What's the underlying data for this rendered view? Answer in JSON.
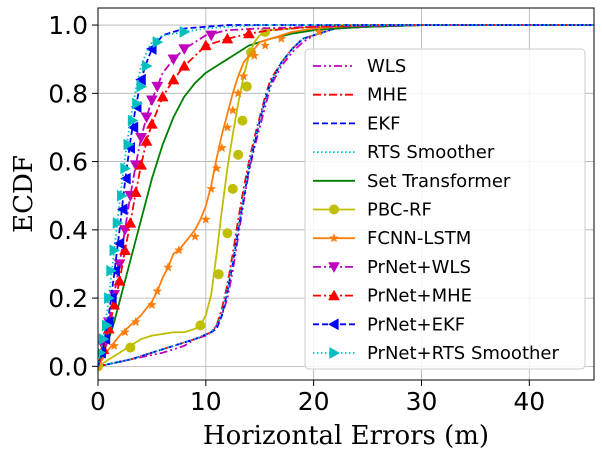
{
  "chart_data": {
    "type": "line",
    "xlabel": "Horizontal Errors (m)",
    "ylabel": "ECDF",
    "xlim": [
      0,
      46
    ],
    "ylim": [
      -0.04,
      1.05
    ],
    "xticks": [
      "0",
      "10",
      "20",
      "30",
      "40"
    ],
    "yticks": [
      "0.0",
      "0.2",
      "0.4",
      "0.6",
      "0.8",
      "1.0"
    ],
    "grid": true,
    "legend_position": "right",
    "series": [
      {
        "name": "WLS",
        "color": "#bf00bf",
        "dash": "dashdotdot",
        "marker": "none",
        "x": [
          0,
          3,
          6,
          8,
          9,
          10,
          10.5,
          11,
          11.5,
          12,
          12.5,
          13,
          13.5,
          14,
          14.5,
          15,
          15.5,
          16,
          17,
          18,
          19,
          20,
          22,
          25,
          30,
          40,
          46
        ],
        "y": [
          0,
          0.02,
          0.04,
          0.06,
          0.08,
          0.09,
          0.1,
          0.12,
          0.15,
          0.2,
          0.28,
          0.38,
          0.48,
          0.57,
          0.64,
          0.7,
          0.76,
          0.82,
          0.88,
          0.92,
          0.95,
          0.97,
          0.99,
          0.995,
          1,
          1,
          1
        ]
      },
      {
        "name": "MHE",
        "color": "#ff0000",
        "dash": "dashdot",
        "marker": "none",
        "x": [
          0,
          3,
          6,
          9,
          10.5,
          11,
          11.5,
          12,
          12.5,
          13,
          13.5,
          14,
          14.5,
          15,
          15.5,
          16,
          17,
          18,
          19,
          20,
          22,
          25,
          30,
          40,
          46
        ],
        "y": [
          0,
          0.02,
          0.05,
          0.08,
          0.1,
          0.12,
          0.17,
          0.24,
          0.33,
          0.43,
          0.52,
          0.6,
          0.67,
          0.73,
          0.79,
          0.84,
          0.89,
          0.93,
          0.96,
          0.97,
          0.99,
          0.995,
          1,
          1,
          1
        ]
      },
      {
        "name": "EKF",
        "color": "#0000ff",
        "dash": "dashed",
        "marker": "none",
        "x": [
          0,
          3,
          6,
          9,
          10.5,
          11,
          11.5,
          12,
          12.5,
          13,
          13.5,
          14,
          14.5,
          15,
          15.5,
          16,
          17,
          18,
          19,
          20,
          22,
          25,
          30,
          40,
          46
        ],
        "y": [
          0,
          0.02,
          0.05,
          0.08,
          0.1,
          0.11,
          0.15,
          0.22,
          0.3,
          0.4,
          0.49,
          0.58,
          0.65,
          0.72,
          0.78,
          0.83,
          0.89,
          0.93,
          0.96,
          0.97,
          0.99,
          0.995,
          1,
          1,
          1
        ]
      },
      {
        "name": "RTS Smoother",
        "color": "#00bfbf",
        "dash": "dotted",
        "marker": "none",
        "x": [
          0,
          3,
          6,
          9,
          10.5,
          11,
          11.5,
          12,
          12.5,
          13,
          13.5,
          14,
          14.5,
          15,
          15.5,
          16,
          17,
          18,
          19,
          20,
          22,
          25,
          30,
          40,
          46
        ],
        "y": [
          0,
          0.02,
          0.05,
          0.08,
          0.1,
          0.12,
          0.16,
          0.23,
          0.31,
          0.41,
          0.5,
          0.59,
          0.66,
          0.72,
          0.78,
          0.83,
          0.89,
          0.93,
          0.96,
          0.97,
          0.99,
          0.995,
          1,
          1,
          1
        ]
      },
      {
        "name": "Set Transformer",
        "color": "#008000",
        "dash": "solid",
        "marker": "none",
        "x": [
          0,
          0.5,
          1,
          1.5,
          2,
          2.5,
          3,
          3.5,
          4,
          4.5,
          5,
          5.5,
          6,
          6.5,
          7,
          7.5,
          8,
          9,
          10,
          11,
          12,
          13,
          14,
          16,
          18,
          20,
          22,
          25,
          30,
          40,
          46
        ],
        "y": [
          0,
          0.04,
          0.08,
          0.13,
          0.19,
          0.25,
          0.31,
          0.37,
          0.43,
          0.49,
          0.55,
          0.6,
          0.65,
          0.69,
          0.73,
          0.76,
          0.79,
          0.83,
          0.86,
          0.88,
          0.9,
          0.92,
          0.94,
          0.96,
          0.975,
          0.985,
          0.99,
          0.995,
          1,
          1,
          1
        ]
      },
      {
        "name": "PBC-RF",
        "color": "#bfbf00",
        "dash": "solid",
        "marker": "circle",
        "x": [
          0,
          1,
          2,
          3,
          4,
          5,
          6,
          7,
          8,
          9,
          9.5,
          10,
          10.5,
          11,
          11.5,
          12,
          12.5,
          13,
          13.5,
          14,
          14.5,
          15,
          16,
          18,
          20,
          22,
          25,
          30,
          40,
          46
        ],
        "y": [
          0,
          0.02,
          0.04,
          0.06,
          0.08,
          0.09,
          0.095,
          0.1,
          0.1,
          0.11,
          0.12,
          0.15,
          0.21,
          0.33,
          0.46,
          0.58,
          0.68,
          0.77,
          0.85,
          0.91,
          0.95,
          0.97,
          0.985,
          0.99,
          0.995,
          1,
          1,
          1,
          1,
          1
        ],
        "marker_x": [
          0,
          3,
          9.5,
          11.2,
          12,
          12.5,
          13,
          13.4,
          13.8,
          14.2,
          15.5
        ],
        "marker_y": [
          0,
          0.055,
          0.12,
          0.27,
          0.39,
          0.52,
          0.62,
          0.72,
          0.82,
          0.92,
          0.98
        ]
      },
      {
        "name": "FCNN-LSTM",
        "color": "#ff7f0e",
        "dash": "solid",
        "marker": "star",
        "x": [
          0,
          1,
          2,
          3,
          4,
          5,
          5.5,
          6,
          6.5,
          7,
          7.5,
          8,
          8.5,
          9,
          9.5,
          10,
          10.5,
          11,
          11.5,
          12,
          12.5,
          13,
          13.5,
          14,
          14.5,
          15,
          16,
          17,
          18,
          20,
          22,
          25,
          30,
          40,
          46
        ],
        "y": [
          0,
          0.05,
          0.09,
          0.12,
          0.15,
          0.19,
          0.22,
          0.26,
          0.29,
          0.33,
          0.34,
          0.36,
          0.38,
          0.4,
          0.43,
          0.47,
          0.53,
          0.61,
          0.68,
          0.74,
          0.8,
          0.85,
          0.89,
          0.91,
          0.93,
          0.95,
          0.96,
          0.97,
          0.98,
          0.99,
          0.995,
          1,
          1,
          1,
          1
        ],
        "marker_x": [
          0,
          1.5,
          2.5,
          3.5,
          5,
          5.5,
          6.5,
          7.5,
          9,
          10,
          10.5,
          11,
          11.5,
          12,
          12.5,
          13,
          13.5,
          14.5,
          15.5,
          17,
          20.5
        ],
        "marker_y": [
          0,
          0.06,
          0.1,
          0.13,
          0.18,
          0.22,
          0.29,
          0.34,
          0.38,
          0.43,
          0.52,
          0.58,
          0.64,
          0.7,
          0.75,
          0.8,
          0.85,
          0.91,
          0.94,
          0.96,
          0.98
        ]
      },
      {
        "name": "PrNet+WLS",
        "color": "#bf00bf",
        "dash": "dashdot",
        "marker": "triangle-down",
        "x": [
          0,
          0.5,
          1,
          1.5,
          2,
          2.5,
          3,
          3.5,
          4,
          4.5,
          5,
          5.5,
          6,
          6.5,
          7,
          8,
          9,
          10,
          12,
          15,
          20,
          30,
          40,
          46
        ],
        "y": [
          0,
          0.06,
          0.13,
          0.21,
          0.3,
          0.4,
          0.5,
          0.59,
          0.67,
          0.73,
          0.78,
          0.82,
          0.86,
          0.88,
          0.9,
          0.93,
          0.95,
          0.97,
          0.985,
          0.99,
          0.995,
          1,
          1,
          1
        ],
        "marker_x": [
          0.5,
          1,
          1.5,
          2,
          2.5,
          3,
          3.5,
          4,
          4.5,
          5,
          5.5,
          7,
          8,
          10.5
        ],
        "marker_y": [
          0.06,
          0.13,
          0.21,
          0.3,
          0.4,
          0.5,
          0.59,
          0.67,
          0.73,
          0.78,
          0.82,
          0.9,
          0.93,
          0.97
        ]
      },
      {
        "name": "PrNet+MHE",
        "color": "#ff0000",
        "dash": "dashdot",
        "marker": "triangle-up",
        "x": [
          0,
          0.5,
          1,
          1.5,
          2,
          2.5,
          3,
          3.5,
          4,
          4.5,
          5,
          6,
          7,
          8,
          9,
          10,
          12,
          14,
          16,
          18,
          20,
          25,
          30,
          40,
          46
        ],
        "y": [
          0,
          0.05,
          0.11,
          0.18,
          0.25,
          0.34,
          0.42,
          0.51,
          0.59,
          0.66,
          0.71,
          0.79,
          0.84,
          0.88,
          0.91,
          0.94,
          0.96,
          0.975,
          0.985,
          0.99,
          0.995,
          1,
          1,
          1,
          1
        ],
        "marker_x": [
          0.5,
          1,
          1.5,
          2,
          2.5,
          3,
          3.5,
          4,
          4.5,
          5,
          6,
          7,
          8,
          10,
          12,
          14
        ],
        "marker_y": [
          0.05,
          0.11,
          0.18,
          0.25,
          0.34,
          0.42,
          0.51,
          0.59,
          0.66,
          0.71,
          0.79,
          0.84,
          0.88,
          0.94,
          0.96,
          0.975
        ]
      },
      {
        "name": "PrNet+EKF",
        "color": "#0000ff",
        "dash": "dashed",
        "marker": "triangle-left",
        "x": [
          0,
          0.5,
          1,
          1.5,
          2,
          2.5,
          3,
          3.5,
          4,
          4.5,
          5,
          5.5,
          6,
          7,
          8,
          10,
          12,
          15,
          20,
          30,
          40,
          46
        ],
        "y": [
          0,
          0.06,
          0.15,
          0.27,
          0.4,
          0.54,
          0.66,
          0.76,
          0.84,
          0.89,
          0.93,
          0.95,
          0.97,
          0.98,
          0.99,
          0.995,
          1,
          1,
          1,
          1,
          1,
          1
        ],
        "marker_x": [
          0.3,
          0.7,
          1,
          1.3,
          1.6,
          2,
          2.3,
          2.6,
          3,
          3.3,
          3.6,
          4,
          5
        ],
        "marker_y": [
          0.04,
          0.08,
          0.13,
          0.2,
          0.28,
          0.36,
          0.46,
          0.55,
          0.64,
          0.7,
          0.76,
          0.84,
          0.93
        ]
      },
      {
        "name": "PrNet+RTS Smoother",
        "color": "#00bfbf",
        "dash": "dotted",
        "marker": "triangle-right",
        "x": [
          0,
          0.5,
          1,
          1.5,
          2,
          2.5,
          3,
          3.5,
          4,
          4.5,
          5,
          5.5,
          6,
          7,
          8,
          10,
          12,
          15,
          20,
          30,
          40,
          46
        ],
        "y": [
          0,
          0.08,
          0.2,
          0.34,
          0.48,
          0.61,
          0.72,
          0.81,
          0.88,
          0.92,
          0.95,
          0.96,
          0.97,
          0.975,
          0.98,
          0.99,
          0.995,
          1,
          1,
          1,
          1,
          1
        ],
        "marker_x": [
          0.2,
          0.5,
          0.8,
          1,
          1.2,
          1.5,
          1.8,
          2.2,
          2.5,
          2.8,
          3.2,
          3.6,
          4,
          4.5,
          5.5,
          8
        ],
        "marker_y": [
          0.04,
          0.08,
          0.12,
          0.2,
          0.28,
          0.34,
          0.42,
          0.5,
          0.58,
          0.65,
          0.72,
          0.77,
          0.82,
          0.88,
          0.95,
          0.98
        ]
      }
    ]
  }
}
